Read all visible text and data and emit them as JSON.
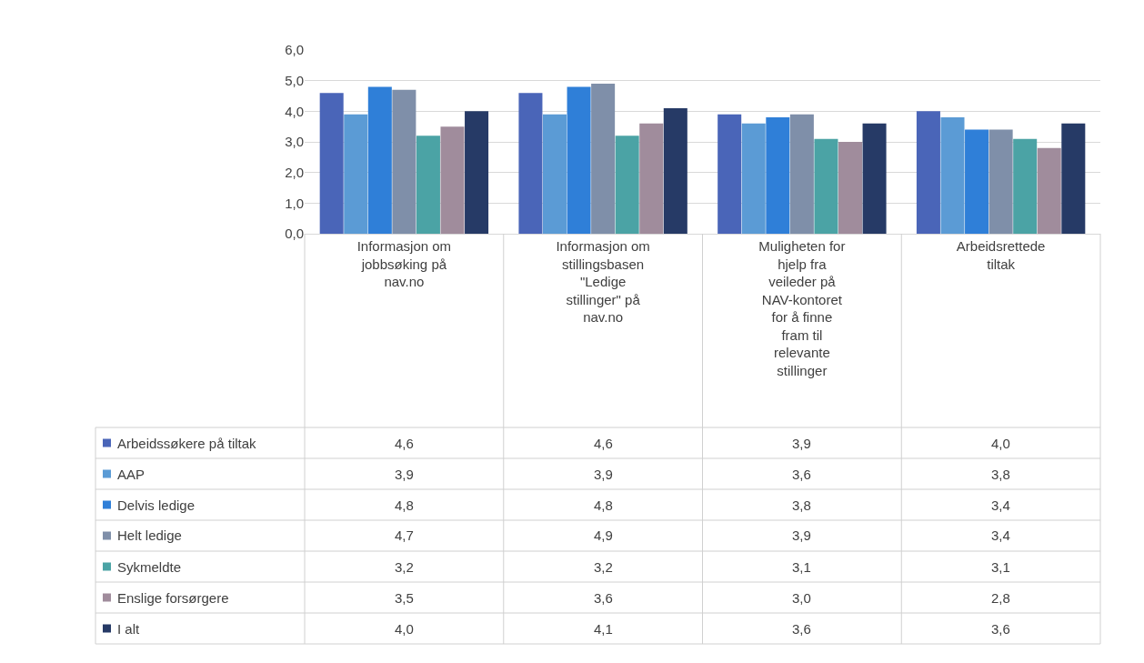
{
  "chart_data": {
    "type": "bar",
    "categories": [
      "Informasjon om jobbsøking på nav.no",
      "Informasjon om stillingsbasen \"Ledige stillinger\" på nav.no",
      "Muligheten for hjelp fra veileder på NAV-kontoret for å finne fram til relevante stillinger",
      "Arbeidsrettede tiltak"
    ],
    "series": [
      {
        "name": "Arbeidssøkere på tiltak",
        "color": "#4a65b8",
        "values": [
          4.6,
          4.6,
          3.9,
          4.0
        ],
        "value_labels": [
          "4,6",
          "4,6",
          "3,9",
          "4,0"
        ]
      },
      {
        "name": "AAP",
        "color": "#5b9bd5",
        "values": [
          3.9,
          3.9,
          3.6,
          3.8
        ],
        "value_labels": [
          "3,9",
          "3,9",
          "3,6",
          "3,8"
        ]
      },
      {
        "name": "Delvis ledige",
        "color": "#2f7fd8",
        "values": [
          4.8,
          4.8,
          3.8,
          3.4
        ],
        "value_labels": [
          "4,8",
          "4,8",
          "3,8",
          "3,4"
        ]
      },
      {
        "name": "Helt ledige",
        "color": "#7f8fa9",
        "values": [
          4.7,
          4.9,
          3.9,
          3.4
        ],
        "value_labels": [
          "4,7",
          "4,9",
          "3,9",
          "3,4"
        ]
      },
      {
        "name": "Sykmeldte",
        "color": "#4ba3a5",
        "values": [
          3.2,
          3.2,
          3.1,
          3.1
        ],
        "value_labels": [
          "3,2",
          "3,2",
          "3,1",
          "3,1"
        ]
      },
      {
        "name": "Enslige forsørgere",
        "color": "#a08c9c",
        "values": [
          3.5,
          3.6,
          3.0,
          2.8
        ],
        "value_labels": [
          "3,5",
          "3,6",
          "3,0",
          "2,8"
        ]
      },
      {
        "name": "I alt",
        "color": "#263a66",
        "values": [
          4.0,
          4.1,
          3.6,
          3.6
        ],
        "value_labels": [
          "4,0",
          "4,1",
          "3,6",
          "3,6"
        ]
      }
    ],
    "ylim": [
      0,
      6
    ],
    "yticks": [
      {
        "value": 0,
        "label": "0,0"
      },
      {
        "value": 1,
        "label": "1,0"
      },
      {
        "value": 2,
        "label": "2,0"
      },
      {
        "value": 3,
        "label": "3,0"
      },
      {
        "value": 4,
        "label": "4,0"
      },
      {
        "value": 5,
        "label": "5,0"
      },
      {
        "value": 6,
        "label": "6,0"
      }
    ],
    "grid": "y",
    "legend": "bottom"
  }
}
